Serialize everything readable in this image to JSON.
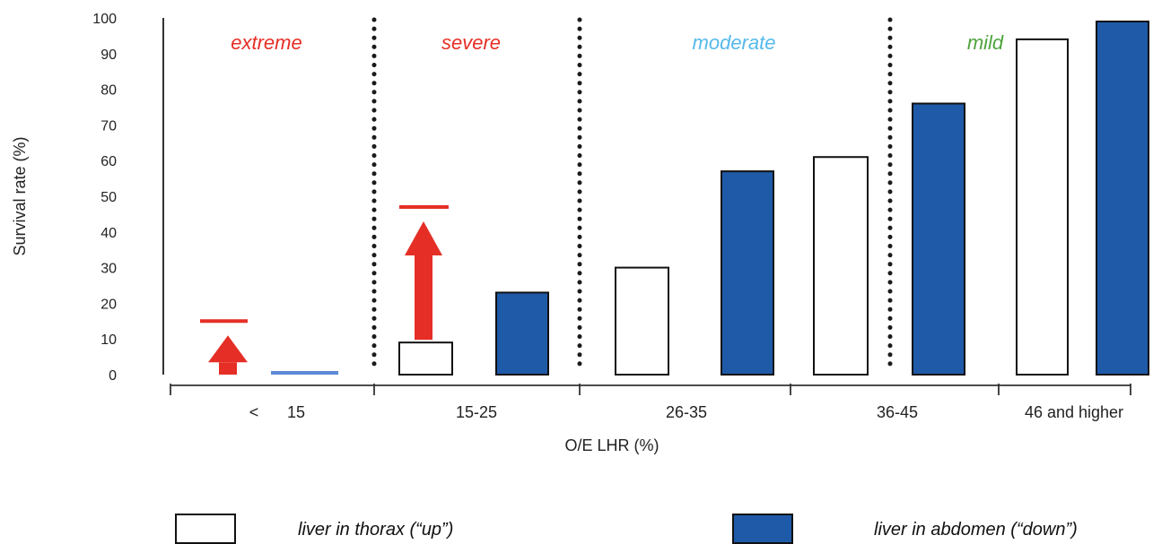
{
  "chart_data": {
    "type": "bar",
    "xlabel": "O/E LHR (%)",
    "ylabel": "Survival rate (%)",
    "ylim": [
      0,
      100
    ],
    "yticks": [
      "0",
      "10",
      "20",
      "30",
      "40",
      "50",
      "60",
      "70",
      "80",
      "90",
      "100"
    ],
    "categories": [
      {
        "prefix": "<",
        "label": "15"
      },
      {
        "prefix": "",
        "label": "15-25"
      },
      {
        "prefix": "",
        "label": "26-35"
      },
      {
        "prefix": "",
        "label": "36-45"
      },
      {
        "prefix": "",
        "label": "46 and higher"
      }
    ],
    "series": [
      {
        "name": "liver in thorax (“up”)",
        "color": "#ffffff",
        "stroke": "#111111",
        "values": [
          0,
          9,
          30,
          61,
          94
        ]
      },
      {
        "name": "liver in abdomen (“down”)",
        "color": "#1f5aa8",
        "stroke": "#111111",
        "values": [
          0,
          23,
          57,
          76,
          99
        ]
      }
    ],
    "severity_labels": [
      {
        "text": "extreme",
        "color": "#e52f26"
      },
      {
        "text": "severe",
        "color": "#e52f26"
      },
      {
        "text": "moderate",
        "color": "#55b9eb"
      },
      {
        "text": "mild",
        "color": "#4da43d"
      }
    ],
    "improvement_arrows": [
      {
        "from": 0,
        "to": 15,
        "color": "#e52f26"
      },
      {
        "from": 9,
        "to": 47,
        "color": "#e52f26"
      }
    ],
    "zero_marker_color": "#5b89d6",
    "legend": [
      {
        "label": "liver in thorax (“up”)",
        "fill": "#ffffff",
        "stroke": "#111111"
      },
      {
        "label": "liver in abdomen (“down”)",
        "fill": "#1f5aa8",
        "stroke": "#111111"
      }
    ]
  }
}
